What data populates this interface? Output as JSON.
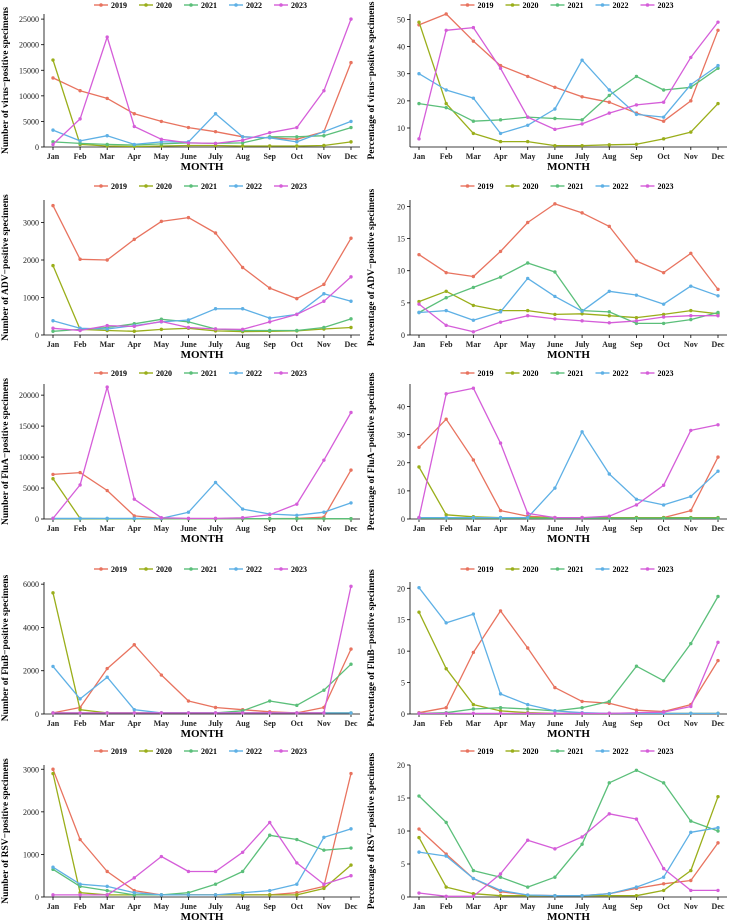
{
  "colors": {
    "2019": "#E8735F",
    "2020": "#9AAE1A",
    "2021": "#5BBF7A",
    "2022": "#5EB0E5",
    "2023": "#D55ED9"
  },
  "months": [
    "Jan",
    "Feb",
    "Mar",
    "Apr",
    "May",
    "June",
    "July",
    "Aug",
    "Sep",
    "Oct",
    "Nov",
    "Dec"
  ],
  "chart_data": [
    {
      "type": "line",
      "title": "",
      "xlabel": "MONTH",
      "ylabel": "Number of virus−positive specimens",
      "categories": [
        "Jan",
        "Feb",
        "Mar",
        "Apr",
        "May",
        "June",
        "July",
        "Aug",
        "Sep",
        "Oct",
        "Nov",
        "Dec"
      ],
      "ylim": [
        0,
        26000
      ],
      "yticks": [
        0,
        5000,
        10000,
        15000,
        20000,
        25000
      ],
      "series": [
        {
          "name": "2019",
          "values": [
            13500,
            11000,
            9500,
            6500,
            5000,
            3800,
            3000,
            2000,
            1800,
            1500,
            3000,
            16500
          ]
        },
        {
          "name": "2020",
          "values": [
            17000,
            500,
            200,
            100,
            200,
            300,
            300,
            200,
            200,
            200,
            300,
            1000
          ]
        },
        {
          "name": "2021",
          "values": [
            1000,
            700,
            500,
            400,
            600,
            800,
            700,
            800,
            2000,
            2000,
            2200,
            3800
          ]
        },
        {
          "name": "2022",
          "values": [
            3300,
            1200,
            2200,
            500,
            1000,
            1000,
            6500,
            2000,
            1800,
            1000,
            3000,
            5000
          ]
        },
        {
          "name": "2023",
          "values": [
            500,
            5500,
            21500,
            4000,
            1500,
            800,
            700,
            1300,
            2800,
            3800,
            11000,
            25000
          ]
        }
      ]
    },
    {
      "type": "line",
      "title": "",
      "xlabel": "MONTH",
      "ylabel": "Percentage of virus−positive specimens",
      "categories": [
        "Jan",
        "Feb",
        "Mar",
        "Apr",
        "May",
        "June",
        "July",
        "Aug",
        "Sep",
        "Oct",
        "Nov",
        "Dec"
      ],
      "ylim": [
        3,
        52
      ],
      "yticks": [
        10,
        20,
        30,
        40,
        50
      ],
      "series": [
        {
          "name": "2019",
          "values": [
            48,
            52,
            42,
            33,
            29,
            25,
            21.5,
            19.5,
            15.5,
            12.5,
            20,
            46
          ]
        },
        {
          "name": "2020",
          "values": [
            49,
            19,
            8,
            5,
            5,
            3.5,
            3.5,
            3.8,
            4,
            6,
            8.5,
            19
          ]
        },
        {
          "name": "2021",
          "values": [
            19,
            17.5,
            12.5,
            13,
            14,
            13.5,
            13,
            22,
            29,
            24,
            25,
            32
          ]
        },
        {
          "name": "2022",
          "values": [
            30,
            24,
            21,
            8,
            11,
            17,
            35,
            24,
            15,
            14,
            26,
            33
          ]
        },
        {
          "name": "2023",
          "values": [
            6,
            46,
            47,
            32,
            14,
            9.5,
            11.5,
            15.5,
            18.5,
            19.5,
            36,
            49
          ]
        }
      ]
    },
    {
      "type": "line",
      "title": "",
      "xlabel": "MONTH",
      "ylabel": "Number of ADV−positive specimens",
      "categories": [
        "Jan",
        "Feb",
        "Mar",
        "Apr",
        "May",
        "June",
        "July",
        "Aug",
        "Sep",
        "Oct",
        "Nov",
        "Dec"
      ],
      "ylim": [
        0,
        3600
      ],
      "yticks": [
        0,
        1000,
        2000,
        3000
      ],
      "series": [
        {
          "name": "2019",
          "values": [
            3450,
            2020,
            2000,
            2550,
            3030,
            3130,
            2720,
            1800,
            1250,
            970,
            1350,
            2580
          ]
        },
        {
          "name": "2020",
          "values": [
            1850,
            150,
            120,
            100,
            150,
            180,
            110,
            90,
            100,
            110,
            160,
            200
          ]
        },
        {
          "name": "2021",
          "values": [
            100,
            150,
            200,
            300,
            420,
            350,
            160,
            120,
            120,
            120,
            200,
            430
          ]
        },
        {
          "name": "2022",
          "values": [
            380,
            180,
            160,
            250,
            350,
            400,
            700,
            700,
            450,
            550,
            1100,
            900
          ]
        },
        {
          "name": "2023",
          "values": [
            180,
            120,
            250,
            230,
            360,
            200,
            160,
            150,
            350,
            550,
            900,
            1550
          ]
        }
      ]
    },
    {
      "type": "line",
      "title": "",
      "xlabel": "MONTH",
      "ylabel": "Percentage of ADV−positive specimens",
      "categories": [
        "Jan",
        "Feb",
        "Mar",
        "Apr",
        "May",
        "June",
        "July",
        "Aug",
        "Sep",
        "Oct",
        "Nov",
        "Dec"
      ],
      "ylim": [
        0,
        21
      ],
      "yticks": [
        0,
        5,
        10,
        15,
        20
      ],
      "series": [
        {
          "name": "2019",
          "values": [
            12.5,
            9.7,
            9.1,
            13,
            17.5,
            20.4,
            19,
            16.9,
            11.5,
            9.7,
            12.7,
            7.1
          ]
        },
        {
          "name": "2020",
          "values": [
            5.2,
            6.8,
            4.6,
            3.8,
            3.8,
            3.2,
            3.3,
            3,
            2.7,
            3.2,
            3.8,
            3.3
          ]
        },
        {
          "name": "2021",
          "values": [
            3.5,
            5.8,
            7.4,
            9,
            11.2,
            9.8,
            3.8,
            3.6,
            1.8,
            1.8,
            2.4,
            3.5
          ]
        },
        {
          "name": "2022",
          "values": [
            3.5,
            3.8,
            2.3,
            3.6,
            8.8,
            6,
            3.7,
            6.8,
            6.2,
            4.8,
            7.6,
            6.1
          ]
        },
        {
          "name": "2023",
          "values": [
            4.8,
            1.5,
            0.5,
            2,
            3,
            2.5,
            2.2,
            1.9,
            2.2,
            2.8,
            3,
            3
          ]
        }
      ]
    },
    {
      "type": "line",
      "title": "",
      "xlabel": "MONTH",
      "ylabel": "Number of FluA−positive specimens",
      "categories": [
        "Jan",
        "Feb",
        "Mar",
        "Apr",
        "May",
        "June",
        "July",
        "Aug",
        "Sep",
        "Oct",
        "Nov",
        "Dec"
      ],
      "ylim": [
        0,
        21800
      ],
      "yticks": [
        0,
        5000,
        10000,
        15000,
        20000
      ],
      "series": [
        {
          "name": "2019",
          "values": [
            7200,
            7500,
            4600,
            500,
            100,
            50,
            50,
            50,
            50,
            100,
            300,
            7900
          ]
        },
        {
          "name": "2020",
          "values": [
            6500,
            100,
            50,
            50,
            50,
            50,
            50,
            50,
            50,
            50,
            50,
            50
          ]
        },
        {
          "name": "2021",
          "values": [
            50,
            50,
            50,
            50,
            50,
            50,
            50,
            50,
            50,
            50,
            50,
            50
          ]
        },
        {
          "name": "2022",
          "values": [
            100,
            100,
            100,
            100,
            100,
            1100,
            5900,
            1600,
            800,
            600,
            1100,
            2600
          ]
        },
        {
          "name": "2023",
          "values": [
            100,
            5500,
            21300,
            3200,
            200,
            100,
            100,
            200,
            700,
            2400,
            9500,
            17200
          ]
        }
      ]
    },
    {
      "type": "line",
      "title": "",
      "xlabel": "MONTH",
      "ylabel": "Percentage of FluA−positive specimens",
      "categories": [
        "Jan",
        "Feb",
        "Mar",
        "Apr",
        "May",
        "June",
        "July",
        "Aug",
        "Sep",
        "Oct",
        "Nov",
        "Dec"
      ],
      "ylim": [
        0,
        48
      ],
      "yticks": [
        0,
        10,
        20,
        30,
        40
      ],
      "series": [
        {
          "name": "2019",
          "values": [
            25.5,
            35.5,
            21,
            3,
            1,
            0.5,
            0.5,
            0.5,
            0.5,
            0.5,
            3,
            22
          ]
        },
        {
          "name": "2020",
          "values": [
            18.5,
            1.5,
            0.8,
            0.5,
            0.5,
            0.5,
            0.5,
            0.5,
            0.5,
            0.5,
            0.5,
            0.5
          ]
        },
        {
          "name": "2021",
          "values": [
            0.3,
            0.3,
            0.3,
            0.3,
            0.3,
            0.3,
            0.3,
            0.3,
            0.3,
            0.3,
            0.3,
            0.3
          ]
        },
        {
          "name": "2022",
          "values": [
            0.5,
            0.5,
            0.5,
            0.5,
            0.5,
            11,
            31,
            16,
            7,
            5,
            8,
            17
          ]
        },
        {
          "name": "2023",
          "values": [
            0.5,
            44.5,
            46.5,
            27,
            2,
            0.5,
            0.5,
            1,
            5,
            12,
            31.5,
            33.5
          ]
        }
      ]
    },
    {
      "type": "line",
      "title": "",
      "xlabel": "MONTH",
      "ylabel": "Number of FluB−positive specimens",
      "categories": [
        "Jan",
        "Feb",
        "Mar",
        "Apr",
        "May",
        "June",
        "July",
        "Aug",
        "Sep",
        "Oct",
        "Nov",
        "Dec"
      ],
      "ylim": [
        0,
        6100
      ],
      "yticks": [
        0,
        2000,
        4000,
        6000
      ],
      "series": [
        {
          "name": "2019",
          "values": [
            50,
            300,
            2100,
            3200,
            1800,
            600,
            300,
            200,
            100,
            50,
            300,
            3000
          ]
        },
        {
          "name": "2020",
          "values": [
            5600,
            200,
            50,
            50,
            50,
            50,
            50,
            50,
            50,
            50,
            50,
            50
          ]
        },
        {
          "name": "2021",
          "values": [
            50,
            50,
            50,
            50,
            50,
            50,
            50,
            150,
            600,
            400,
            1100,
            2300
          ]
        },
        {
          "name": "2022",
          "values": [
            2200,
            700,
            1700,
            200,
            50,
            50,
            50,
            50,
            50,
            50,
            50,
            50
          ]
        },
        {
          "name": "2023",
          "values": [
            50,
            50,
            50,
            50,
            50,
            50,
            50,
            50,
            50,
            50,
            50,
            5900
          ]
        }
      ]
    },
    {
      "type": "line",
      "title": "",
      "xlabel": "MONTH",
      "ylabel": "Percentage of FluB−positive specimens",
      "categories": [
        "Jan",
        "Feb",
        "Mar",
        "Apr",
        "May",
        "June",
        "July",
        "Aug",
        "Sep",
        "Oct",
        "Nov",
        "Dec"
      ],
      "ylim": [
        0,
        21
      ],
      "yticks": [
        0,
        5,
        10,
        15,
        20
      ],
      "series": [
        {
          "name": "2019",
          "values": [
            0.2,
            1,
            9.8,
            16.4,
            10.5,
            4.2,
            2,
            1.7,
            0.6,
            0.4,
            1.5,
            8.5
          ]
        },
        {
          "name": "2020",
          "values": [
            16.2,
            7.2,
            1.5,
            0.5,
            0.2,
            0.1,
            0.1,
            0.1,
            0.1,
            0.1,
            0.1,
            0.1
          ]
        },
        {
          "name": "2021",
          "values": [
            0.1,
            0.2,
            0.8,
            1,
            0.8,
            0.5,
            1,
            2,
            7.6,
            5.3,
            11.2,
            18.7
          ]
        },
        {
          "name": "2022",
          "values": [
            20.1,
            14.5,
            15.9,
            3.2,
            1.5,
            0.5,
            0.2,
            0.1,
            0.1,
            0.1,
            0.1,
            0.1
          ]
        },
        {
          "name": "2023",
          "values": [
            0.1,
            0.1,
            0.1,
            0.1,
            0.1,
            0.1,
            0.1,
            0.1,
            0.2,
            0.3,
            1.2,
            11.4
          ]
        }
      ]
    },
    {
      "type": "line",
      "title": "",
      "xlabel": "MONTH",
      "ylabel": "Number of RSV−positive specimens",
      "categories": [
        "Jan",
        "Feb",
        "Mar",
        "Apr",
        "May",
        "June",
        "July",
        "Aug",
        "Sep",
        "Oct",
        "Nov",
        "Dec"
      ],
      "ylim": [
        0,
        3100
      ],
      "yticks": [
        0,
        1000,
        2000,
        3000
      ],
      "series": [
        {
          "name": "2019",
          "values": [
            3000,
            1350,
            600,
            150,
            50,
            50,
            50,
            50,
            50,
            100,
            250,
            2900
          ]
        },
        {
          "name": "2020",
          "values": [
            2900,
            100,
            50,
            50,
            50,
            50,
            50,
            50,
            50,
            50,
            200,
            750
          ]
        },
        {
          "name": "2021",
          "values": [
            650,
            250,
            150,
            50,
            50,
            100,
            300,
            600,
            1450,
            1350,
            1100,
            1150
          ]
        },
        {
          "name": "2022",
          "values": [
            700,
            300,
            250,
            100,
            50,
            50,
            50,
            100,
            150,
            300,
            1400,
            1600
          ]
        },
        {
          "name": "2023",
          "values": [
            50,
            50,
            50,
            450,
            950,
            600,
            600,
            1050,
            1750,
            800,
            300,
            500
          ]
        }
      ]
    },
    {
      "type": "line",
      "title": "",
      "xlabel": "MONTH",
      "ylabel": "Percentage of RSV−positive specimens",
      "categories": [
        "Jan",
        "Feb",
        "Mar",
        "Apr",
        "May",
        "June",
        "July",
        "Aug",
        "Sep",
        "Oct",
        "Nov",
        "Dec"
      ],
      "ylim": [
        0,
        20
      ],
      "yticks": [
        0,
        5,
        10,
        15,
        20
      ],
      "series": [
        {
          "name": "2019",
          "values": [
            10.3,
            6.5,
            2.8,
            0.8,
            0.3,
            0.2,
            0.2,
            0.5,
            1.3,
            2,
            2.5,
            8.2
          ]
        },
        {
          "name": "2020",
          "values": [
            9,
            1.5,
            0.5,
            0.2,
            0.2,
            0.2,
            0.2,
            0.2,
            0.2,
            1,
            4,
            15.2
          ]
        },
        {
          "name": "2021",
          "values": [
            15.3,
            11.3,
            4,
            3,
            1.5,
            3,
            8,
            17.3,
            19.2,
            17.3,
            11.5,
            10
          ]
        },
        {
          "name": "2022",
          "values": [
            6.8,
            6.2,
            2.8,
            1,
            0.3,
            0.2,
            0.2,
            0.5,
            1.5,
            3,
            9.8,
            10.5
          ]
        },
        {
          "name": "2023",
          "values": [
            0.6,
            0.1,
            0.1,
            3.5,
            8.6,
            7.3,
            9.1,
            12.6,
            11.8,
            4.3,
            1,
            1
          ]
        }
      ]
    }
  ]
}
